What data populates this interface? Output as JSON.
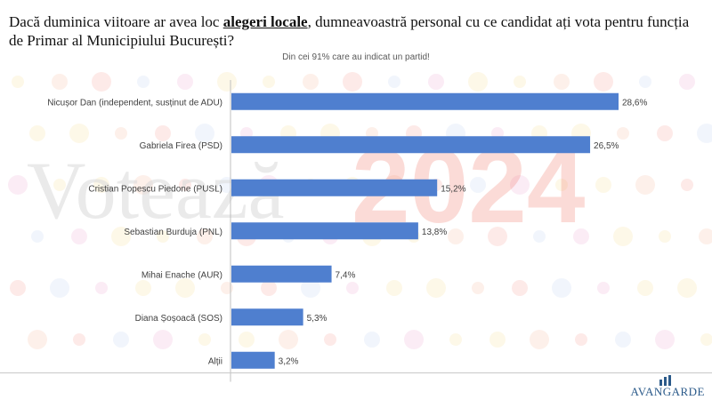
{
  "title": {
    "before": "Dacă duminica viitoare ar avea loc ",
    "highlight": "alegeri locale",
    "after": ", dumneavoastră personal cu ce candidat ați vota pentru funcția de Primar al Municipiului București?"
  },
  "subtitle": "Din cei 91% care au indicat un partid!",
  "watermark": {
    "word": "Votează",
    "year": "2024"
  },
  "logo": {
    "name": "AVANGARDE"
  },
  "colors": {
    "bar": "#4f7fcf",
    "axis": "#bfbfbf"
  },
  "chart_data": {
    "type": "bar",
    "orientation": "horizontal",
    "categories": [
      "Nicușor Dan (independent, susținut de ADU)",
      "Gabriela Firea (PSD)",
      "Cristian Popescu Piedone (PUSL)",
      "Sebastian Burduja (PNL)",
      "Mihai Enache (AUR)",
      "Diana Șoșoacă (SOS)",
      "Alții"
    ],
    "values": [
      28.6,
      26.5,
      15.2,
      13.8,
      7.4,
      5.3,
      3.2
    ],
    "labels": [
      "28,6%",
      "26,5%",
      "15,2%",
      "13,8%",
      "7,4%",
      "5,3%",
      "3,2%"
    ],
    "xlim": [
      0,
      28.6
    ],
    "grid": false,
    "legend": "none"
  }
}
